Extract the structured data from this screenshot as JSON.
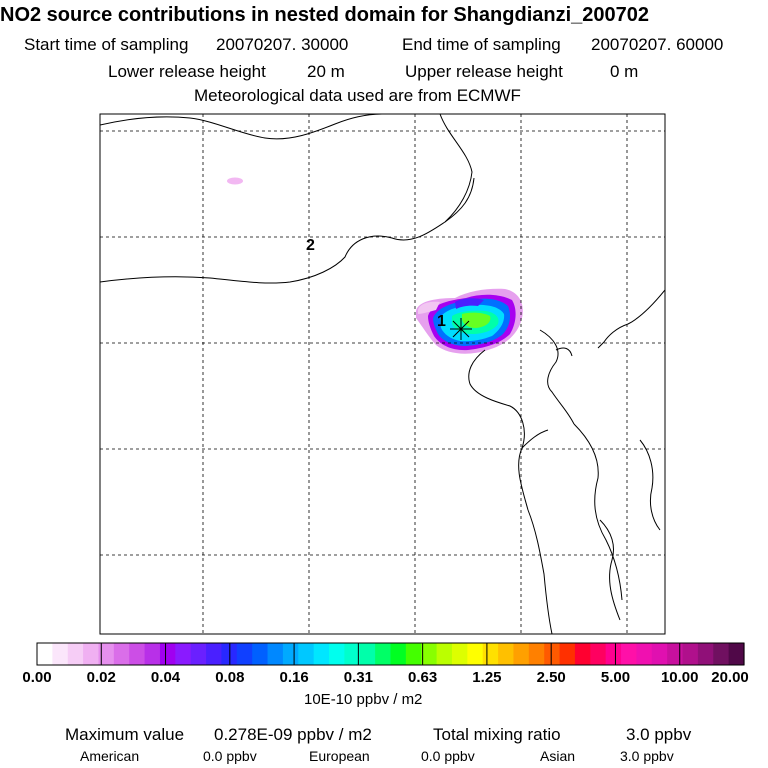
{
  "header": {
    "title": "NO2 source contributions in nested domain for Shangdianzi_200702",
    "start_label": "Start time of sampling",
    "start_value": "20070207. 30000",
    "end_label": "End time of sampling",
    "end_value": "20070207. 60000",
    "lower_label": "Lower release height",
    "lower_value": "20 m",
    "upper_label": "Upper release height",
    "upper_value": "0 m",
    "met_line": "Meteorological data used are from ECMWF"
  },
  "map": {
    "markers": [
      {
        "label": "1"
      },
      {
        "label": "2"
      }
    ],
    "colors": {
      "coast": "#000000",
      "grid": "#000000",
      "site_marker": "#000000"
    }
  },
  "colorbar": {
    "ticks": [
      "0.00",
      "0.02",
      "0.04",
      "0.08",
      "0.16",
      "0.31",
      "0.63",
      "1.25",
      "2.50",
      "5.00",
      "10.00",
      "20.00"
    ],
    "colors": [
      "#ffffff",
      "#fbe6fb",
      "#f6cdf6",
      "#f0b0f2",
      "#e690ee",
      "#da6ee9",
      "#cc4ee6",
      "#b830e8",
      "#a000f0",
      "#8a1aff",
      "#6a20ff",
      "#4a20ff",
      "#2828ff",
      "#1040ff",
      "#0060ff",
      "#0088ff",
      "#00aaff",
      "#00c8ff",
      "#00e6ff",
      "#00ffee",
      "#00ffcc",
      "#00ffaa",
      "#00ff66",
      "#00ff22",
      "#44ff00",
      "#88ff00",
      "#bbff00",
      "#ddff00",
      "#ffff00",
      "#ffe000",
      "#ffc000",
      "#ffa000",
      "#ff8000",
      "#ff5a00",
      "#ff3000",
      "#ff0030",
      "#ff0060",
      "#ff0090",
      "#ff10a8",
      "#f010b0",
      "#e010b0",
      "#c8109e",
      "#b0108c",
      "#901078",
      "#701060",
      "#500848"
    ],
    "unit": "10E-10 ppbv / m2"
  },
  "footer": {
    "max_label": "Maximum value",
    "max_value": "0.278E-09 ppbv / m2",
    "total_label": "Total mixing ratio",
    "total_value": "3.0 ppbv",
    "regions": [
      {
        "name": "American",
        "value": "0.0 ppbv"
      },
      {
        "name": "European",
        "value": "0.0 ppbv"
      },
      {
        "name": "Asian",
        "value": "3.0 ppbv"
      }
    ]
  }
}
